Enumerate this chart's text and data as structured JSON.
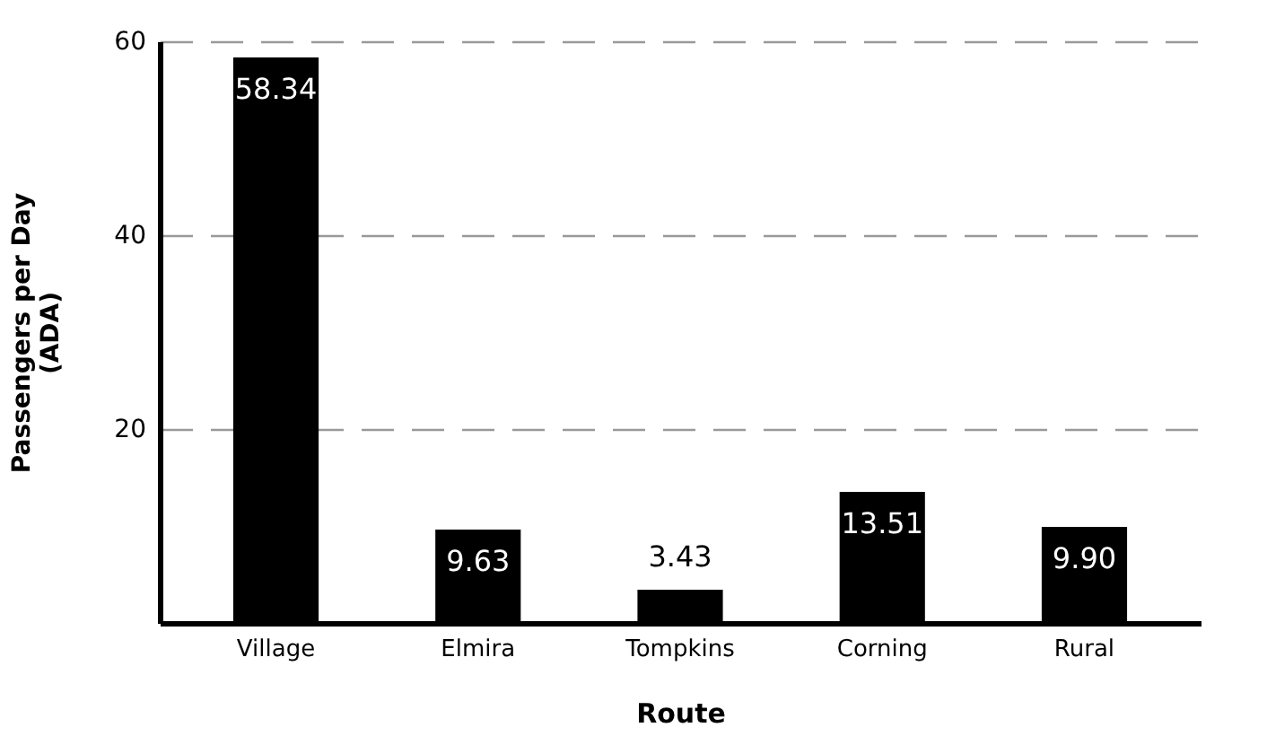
{
  "chart_data": {
    "type": "bar",
    "xlabel": "Route",
    "ylabel": "Passengers per Day\n(ADA)",
    "categories": [
      "Village",
      "Elmira",
      "Tompkins",
      "Corning",
      "Rural"
    ],
    "values": [
      58.34,
      9.63,
      3.43,
      13.51,
      9.9
    ],
    "value_labels": [
      "58.34",
      "9.63",
      "3.43",
      "13.51",
      "9.90"
    ],
    "color": "#000000",
    "ylim": [
      0,
      60
    ],
    "yticks": [
      20,
      40,
      60
    ],
    "grid": "y"
  }
}
